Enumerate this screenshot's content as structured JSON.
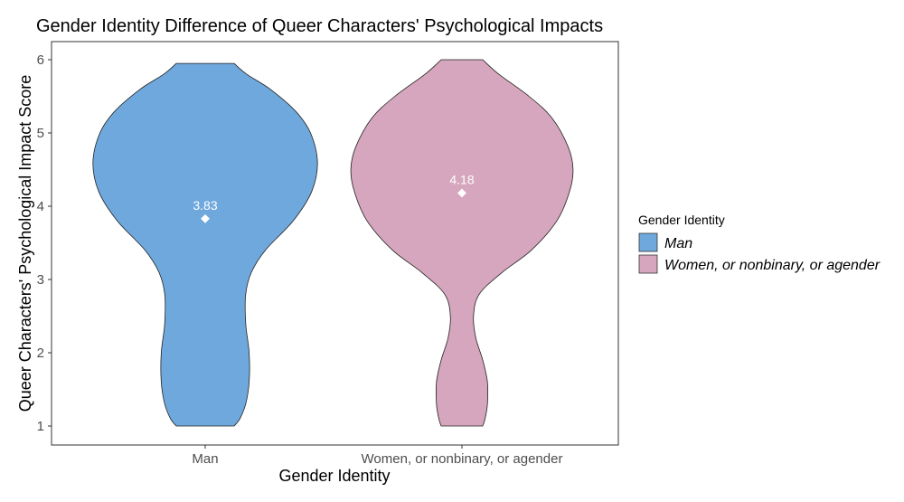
{
  "chart_data": {
    "type": "violin",
    "title": "Gender Identity Difference of Queer Characters' Psychological Impacts",
    "xlabel": "Gender Identity",
    "ylabel": "Queer Characters' Psychological Impact Score",
    "ylim": [
      1,
      6
    ],
    "yticks": [
      "1",
      "2",
      "3",
      "4",
      "5",
      "6"
    ],
    "categories": [
      "Man",
      "Women, or nonbinary, or agender"
    ],
    "colors": [
      "#6fa8dc",
      "#d5a6bd"
    ],
    "means": [
      3.83,
      4.18
    ],
    "mean_labels": [
      "3.83",
      "4.18"
    ],
    "density_halfwidths_by_score": [
      {
        "name": "Man",
        "range": [
          1.0,
          5.95
        ],
        "points": [
          [
            1.0,
            0.25
          ],
          [
            1.1,
            0.3
          ],
          [
            1.3,
            0.35
          ],
          [
            1.6,
            0.38
          ],
          [
            2.0,
            0.38
          ],
          [
            2.4,
            0.35
          ],
          [
            2.8,
            0.35
          ],
          [
            3.1,
            0.4
          ],
          [
            3.4,
            0.52
          ],
          [
            3.8,
            0.76
          ],
          [
            4.2,
            0.92
          ],
          [
            4.6,
            0.97
          ],
          [
            5.0,
            0.91
          ],
          [
            5.3,
            0.78
          ],
          [
            5.6,
            0.56
          ],
          [
            5.8,
            0.36
          ],
          [
            5.95,
            0.25
          ]
        ]
      },
      {
        "name": "Women, or nonbinary, or agender",
        "range": [
          1.0,
          6.0
        ],
        "points": [
          [
            1.0,
            0.18
          ],
          [
            1.1,
            0.2
          ],
          [
            1.3,
            0.22
          ],
          [
            1.6,
            0.22
          ],
          [
            1.9,
            0.18
          ],
          [
            2.2,
            0.12
          ],
          [
            2.5,
            0.1
          ],
          [
            2.8,
            0.15
          ],
          [
            3.1,
            0.35
          ],
          [
            3.4,
            0.6
          ],
          [
            3.8,
            0.82
          ],
          [
            4.2,
            0.93
          ],
          [
            4.5,
            0.96
          ],
          [
            4.8,
            0.92
          ],
          [
            5.2,
            0.78
          ],
          [
            5.5,
            0.58
          ],
          [
            5.8,
            0.32
          ],
          [
            6.0,
            0.18
          ]
        ]
      }
    ],
    "legend": {
      "title": "Gender Identity",
      "items": [
        "Man",
        "Women, or nonbinary, or agender"
      ],
      "position": "right"
    }
  }
}
